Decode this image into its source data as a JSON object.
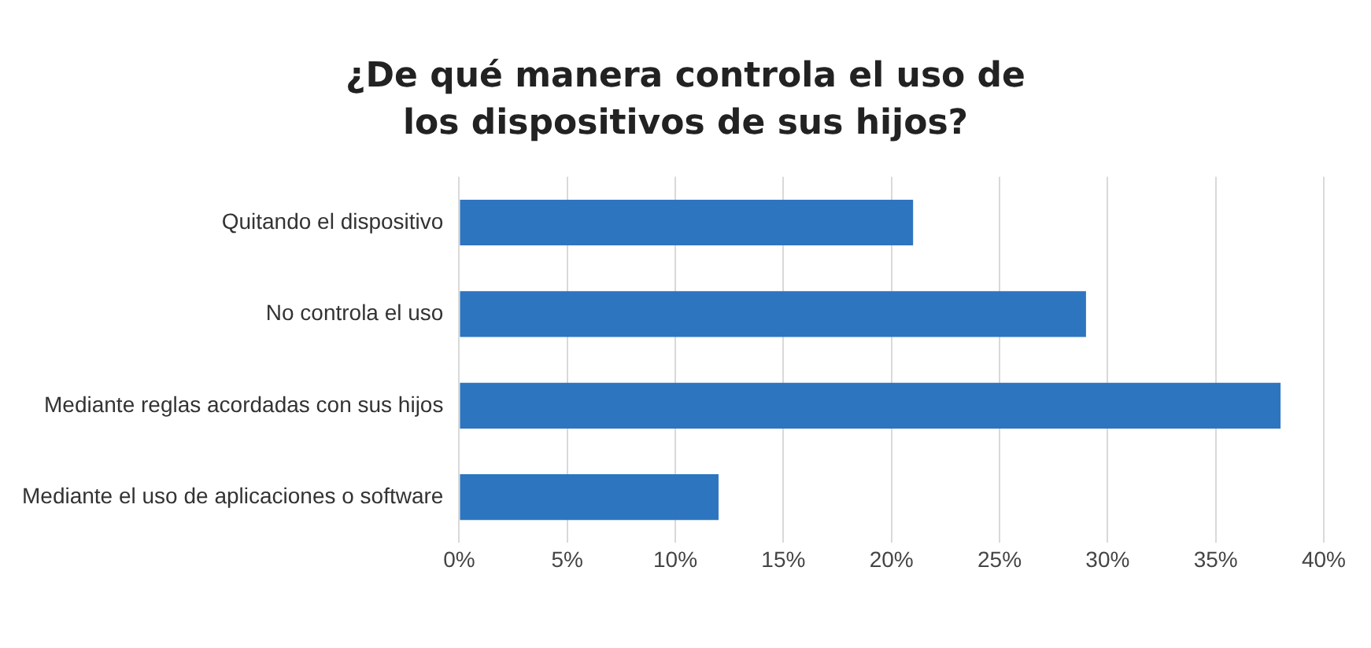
{
  "chart_data": {
    "type": "bar",
    "orientation": "horizontal",
    "title": "¿De qué manera controla el uso de los dispositivos de sus hijos?",
    "categories": [
      "Quitando el dispositivo",
      "No controla el uso",
      "Mediante reglas acordadas con sus hijos",
      "Mediante el uso de aplicaciones o software"
    ],
    "values": [
      21,
      29,
      38,
      12
    ],
    "color": "#2e75c0",
    "xlim": [
      0,
      40
    ],
    "xticks": [
      {
        "value": 0,
        "label": "0%"
      },
      {
        "value": 5,
        "label": "5%"
      },
      {
        "value": 10,
        "label": "10%"
      },
      {
        "value": 15,
        "label": "15%"
      },
      {
        "value": 20,
        "label": "20%"
      },
      {
        "value": 25,
        "label": "25%"
      },
      {
        "value": 30,
        "label": "30%"
      },
      {
        "value": 35,
        "label": "35%"
      },
      {
        "value": 40,
        "label": "40%"
      }
    ],
    "grid": "x"
  }
}
